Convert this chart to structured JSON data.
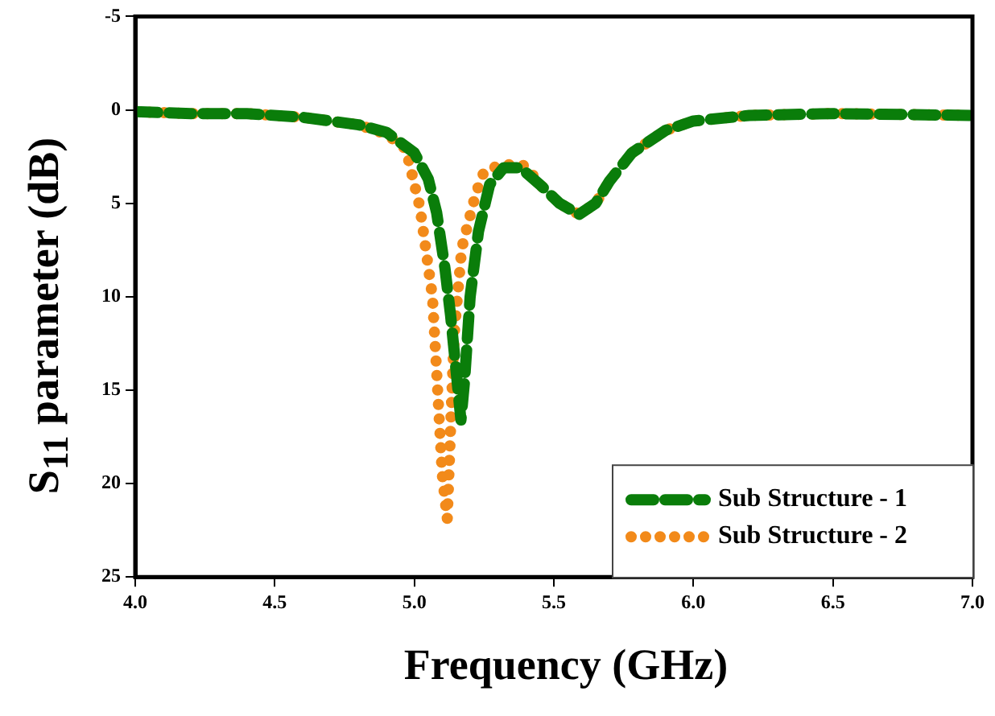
{
  "chart_data": {
    "type": "line",
    "xlabel": "Frequency (GHz)",
    "ylabel": "S$_{11}$ parameter (dB)",
    "xlim": [
      4,
      7
    ],
    "xticks": [
      {
        "value": 4,
        "label": "4.0"
      },
      {
        "value": 4.5,
        "label": "4.5"
      },
      {
        "value": 5,
        "label": "5.0"
      },
      {
        "value": 5.5,
        "label": "5.5"
      },
      {
        "value": 6,
        "label": "6.0"
      },
      {
        "value": 6.5,
        "label": "6.5"
      },
      {
        "value": 7,
        "label": "7.0"
      }
    ],
    "ylim": [
      25,
      -5
    ],
    "yticks": [
      -5,
      0,
      5,
      10,
      15,
      20,
      25
    ],
    "grid": false,
    "legend": "bottom right",
    "marker": "none",
    "series": [
      {
        "name": "Sub Structure - 1",
        "color": "#0a7d0a",
        "line_style": "dashed",
        "x": [
          4.0,
          4.2,
          4.4,
          4.6,
          4.8,
          4.9,
          5.0,
          5.05,
          5.08,
          5.11,
          5.13,
          5.15,
          5.167,
          5.18,
          5.2,
          5.23,
          5.27,
          5.32,
          5.38,
          5.45,
          5.52,
          5.59,
          5.65,
          5.7,
          5.78,
          5.9,
          6.0,
          6.2,
          6.5,
          7.0
        ],
        "values": [
          0.1,
          0.2,
          0.2,
          0.4,
          0.8,
          1.2,
          2.3,
          3.7,
          5.5,
          8.5,
          11,
          14,
          16.6,
          14.5,
          10,
          6.5,
          4.0,
          3.1,
          3.1,
          4.0,
          5.0,
          5.6,
          5.0,
          3.8,
          2.3,
          1.1,
          0.6,
          0.3,
          0.2,
          0.3
        ]
      },
      {
        "name": "Sub Structure - 2",
        "color": "#f28a1a",
        "line_style": "dotted",
        "x": [
          4.0,
          4.2,
          4.4,
          4.6,
          4.8,
          4.9,
          4.97,
          5.02,
          5.065,
          5.08,
          5.1,
          5.118,
          5.13,
          5.143,
          5.17,
          5.22,
          5.25,
          5.3,
          5.36,
          5.4,
          5.45,
          5.52,
          5.59,
          5.65,
          5.7,
          5.78,
          5.9,
          6.0,
          6.2,
          6.5,
          7.0
        ],
        "values": [
          0.1,
          0.2,
          0.2,
          0.4,
          0.8,
          1.3,
          2.1,
          5.2,
          10,
          14,
          19.5,
          21.9,
          17,
          12,
          7.4,
          4.5,
          3.3,
          3.0,
          2.9,
          3.0,
          4.0,
          5.0,
          5.6,
          5.0,
          3.8,
          2.3,
          1.1,
          0.6,
          0.3,
          0.2,
          0.3
        ]
      }
    ]
  }
}
